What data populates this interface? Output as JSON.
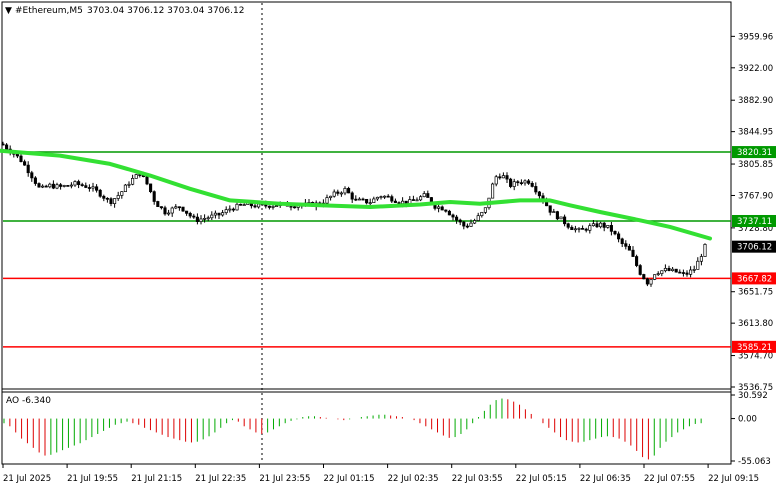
{
  "header": {
    "symbol": "#Ethereum,M5",
    "values": "3703.04 3706.12 3703.04 3706.12"
  },
  "indicator": {
    "label": "AO -6.340"
  },
  "colors": {
    "candle": "#000000",
    "ma": "#33e033",
    "support": "#ff0000",
    "resistance": "#009900",
    "ao_up": "#00aa00",
    "ao_down": "#dd0000"
  },
  "chart_data": {
    "type": "candlestick",
    "title": "#Ethereum,M5",
    "price_axis": {
      "min": 3536.75,
      "max": 3997.8,
      "ticks": [
        "3959.96",
        "3922.00",
        "3882.90",
        "3844.95",
        "3805.85",
        "3767.90",
        "3728.80",
        "3651.75",
        "3613.80",
        "3574.70",
        "3536.75"
      ]
    },
    "time_axis": {
      "ticks": [
        "21 Jul 2025",
        "21 Jul 19:55",
        "21 Jul 21:15",
        "21 Jul 22:35",
        "21 Jul 23:55",
        "22 Jul 01:15",
        "22 Jul 02:35",
        "22 Jul 03:55",
        "22 Jul 05:15",
        "22 Jul 06:35",
        "22 Jul 07:55",
        "22 Jul 09:15"
      ]
    },
    "levels": [
      {
        "name": "resistance-1",
        "value": "3820.31",
        "kind": "resistance"
      },
      {
        "name": "resistance-2",
        "value": "3737.11",
        "kind": "resistance"
      },
      {
        "name": "support-1",
        "value": "3667.82",
        "kind": "support"
      },
      {
        "name": "support-2",
        "value": "3585.21",
        "kind": "support"
      }
    ],
    "current_price": "3706.12",
    "ma_path": [
      [
        0,
        3822
      ],
      [
        60,
        3816
      ],
      [
        110,
        3806
      ],
      [
        150,
        3792
      ],
      [
        190,
        3776
      ],
      [
        230,
        3762
      ],
      [
        280,
        3758
      ],
      [
        320,
        3756
      ],
      [
        370,
        3754
      ],
      [
        420,
        3757
      ],
      [
        450,
        3760
      ],
      [
        480,
        3758
      ],
      [
        520,
        3762
      ],
      [
        550,
        3762
      ],
      [
        570,
        3756
      ],
      [
        600,
        3748
      ],
      [
        640,
        3738
      ],
      [
        670,
        3730
      ],
      [
        710,
        3716
      ]
    ],
    "price_path": [
      [
        2,
        3830
      ],
      [
        10,
        3822
      ],
      [
        20,
        3812
      ],
      [
        30,
        3795
      ],
      [
        40,
        3775
      ],
      [
        50,
        3780
      ],
      [
        60,
        3778
      ],
      [
        75,
        3782
      ],
      [
        90,
        3778
      ],
      [
        100,
        3770
      ],
      [
        110,
        3760
      ],
      [
        120,
        3770
      ],
      [
        130,
        3785
      ],
      [
        140,
        3795
      ],
      [
        148,
        3780
      ],
      [
        155,
        3760
      ],
      [
        165,
        3748
      ],
      [
        180,
        3755
      ],
      [
        195,
        3738
      ],
      [
        210,
        3742
      ],
      [
        220,
        3745
      ],
      [
        230,
        3752
      ],
      [
        245,
        3757
      ],
      [
        260,
        3755
      ],
      [
        280,
        3757
      ],
      [
        300,
        3756
      ],
      [
        320,
        3758
      ],
      [
        335,
        3770
      ],
      [
        345,
        3775
      ],
      [
        355,
        3762
      ],
      [
        370,
        3760
      ],
      [
        380,
        3768
      ],
      [
        390,
        3765
      ],
      [
        400,
        3760
      ],
      [
        410,
        3760
      ],
      [
        425,
        3768
      ],
      [
        435,
        3755
      ],
      [
        445,
        3752
      ],
      [
        455,
        3740
      ],
      [
        465,
        3730
      ],
      [
        475,
        3738
      ],
      [
        485,
        3750
      ],
      [
        495,
        3790
      ],
      [
        502,
        3793
      ],
      [
        510,
        3780
      ],
      [
        520,
        3785
      ],
      [
        530,
        3785
      ],
      [
        540,
        3768
      ],
      [
        550,
        3750
      ],
      [
        560,
        3740
      ],
      [
        570,
        3730
      ],
      [
        580,
        3725
      ],
      [
        590,
        3730
      ],
      [
        600,
        3733
      ],
      [
        610,
        3728
      ],
      [
        620,
        3712
      ],
      [
        630,
        3700
      ],
      [
        640,
        3675
      ],
      [
        648,
        3662
      ],
      [
        655,
        3675
      ],
      [
        665,
        3678
      ],
      [
        675,
        3676
      ],
      [
        685,
        3672
      ],
      [
        695,
        3680
      ],
      [
        705,
        3706
      ]
    ],
    "ao": {
      "label": "AO -6.340",
      "axis_ticks": [
        "30.592",
        "0.00",
        "-55.063"
      ],
      "min": -55.063,
      "max": 30.592,
      "bars": [
        -6,
        -10,
        -18,
        -26,
        -32,
        -38,
        -44,
        -48,
        -47,
        -44,
        -41,
        -38,
        -35,
        -32,
        -28,
        -24,
        -20,
        -16,
        -12,
        -8,
        -6,
        -4,
        -6,
        -8,
        -12,
        -15,
        -18,
        -21,
        -24,
        -26,
        -28,
        -30,
        -31,
        -30,
        -27,
        -23,
        -18,
        -12,
        -6,
        -2,
        -4,
        -10,
        -14,
        -18,
        -20,
        -18,
        -14,
        -10,
        -6,
        -3,
        -1,
        2,
        3,
        3,
        2,
        1,
        0,
        -1,
        -2,
        -1,
        0,
        2,
        3,
        4,
        5,
        5,
        4,
        3,
        2,
        0,
        -2,
        -6,
        -10,
        -14,
        -18,
        -22,
        -25,
        -24,
        -20,
        -14,
        -6,
        2,
        10,
        18,
        24,
        26,
        25,
        22,
        18,
        12,
        6,
        0,
        -6,
        -12,
        -18,
        -24,
        -28,
        -30,
        -31,
        -30,
        -28,
        -26,
        -24,
        -23,
        -24,
        -26,
        -30,
        -35,
        -42,
        -50,
        -53,
        -48,
        -38,
        -30,
        -24,
        -18,
        -14,
        -10,
        -7,
        -6
      ]
    }
  }
}
